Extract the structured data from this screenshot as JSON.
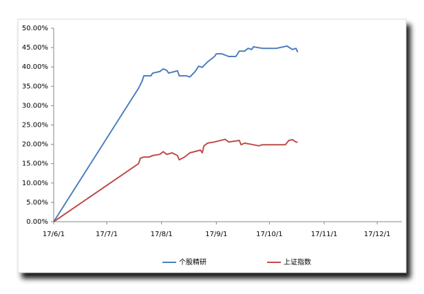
{
  "chart_data": {
    "type": "line",
    "xlim": [
      "17/6/1",
      "17/12/15"
    ],
    "xticks": [
      "17/6/1",
      "17/7/1",
      "17/8/1",
      "17/9/1",
      "17/10/1",
      "17/11/1",
      "17/12/1"
    ],
    "ylim": [
      0,
      50
    ],
    "yticks": [
      {
        "value": 0,
        "label": "0.00%"
      },
      {
        "value": 5,
        "label": "5.00%"
      },
      {
        "value": 10,
        "label": "10.00%"
      },
      {
        "value": 15,
        "label": "15.00%"
      },
      {
        "value": 20,
        "label": "20.00%"
      },
      {
        "value": 25,
        "label": "25.00%"
      },
      {
        "value": 30,
        "label": "30.00%"
      },
      {
        "value": 35,
        "label": "35.00%"
      },
      {
        "value": 40,
        "label": "40.00%"
      },
      {
        "value": 45,
        "label": "45.00%"
      },
      {
        "value": 50,
        "label": "50.00%"
      }
    ],
    "grid": false,
    "legend": "bottom",
    "series": [
      {
        "name": "个股精研",
        "color": "#4a7ebb",
        "x": [
          "17/6/1",
          "17/7/19",
          "17/7/21",
          "17/7/22",
          "17/7/26",
          "17/7/27",
          "17/7/31",
          "17/8/2",
          "17/8/4",
          "17/8/5",
          "17/8/10",
          "17/8/11",
          "17/8/15",
          "17/8/17",
          "17/8/20",
          "17/8/22",
          "17/8/24",
          "17/8/27",
          "17/8/29",
          "17/8/31",
          "17/9/1",
          "17/9/4",
          "17/9/8",
          "17/9/12",
          "17/9/14",
          "17/9/17",
          "17/9/19",
          "17/9/21",
          "17/9/22",
          "17/9/27",
          "17/10/5",
          "17/10/11",
          "17/10/14",
          "17/10/16",
          "17/10/17"
        ],
        "values": [
          0,
          34.5,
          36.3,
          37.7,
          37.7,
          38.4,
          38.8,
          39.5,
          39.1,
          38.4,
          39.0,
          37.7,
          37.7,
          37.4,
          38.8,
          40.2,
          39.9,
          41.3,
          42.0,
          42.7,
          43.4,
          43.4,
          42.7,
          42.7,
          44.1,
          44.1,
          44.8,
          44.5,
          45.2,
          44.8,
          44.8,
          45.4,
          44.5,
          44.8,
          43.8
        ]
      },
      {
        "name": "上证指数",
        "color": "#be4b48",
        "x": [
          "17/6/1",
          "17/7/19",
          "17/7/20",
          "17/7/22",
          "17/7/25",
          "17/7/27",
          "17/7/31",
          "17/8/2",
          "17/8/4",
          "17/8/7",
          "17/8/10",
          "17/8/11",
          "17/8/14",
          "17/8/17",
          "17/8/23",
          "17/8/24",
          "17/8/25",
          "17/8/27",
          "17/8/31",
          "17/9/6",
          "17/9/8",
          "17/9/14",
          "17/9/15",
          "17/9/17",
          "17/9/22",
          "17/9/25",
          "17/9/27",
          "17/10/10",
          "17/10/12",
          "17/10/14",
          "17/10/16",
          "17/10/17"
        ],
        "values": [
          0,
          15.0,
          16.4,
          16.7,
          16.7,
          17.1,
          17.4,
          18.1,
          17.4,
          17.8,
          17.1,
          16.0,
          16.7,
          17.8,
          18.5,
          17.8,
          19.6,
          20.3,
          20.6,
          21.3,
          20.6,
          21.0,
          19.9,
          20.3,
          19.9,
          19.6,
          19.9,
          19.9,
          21.0,
          21.2,
          20.6,
          20.5
        ]
      }
    ]
  }
}
